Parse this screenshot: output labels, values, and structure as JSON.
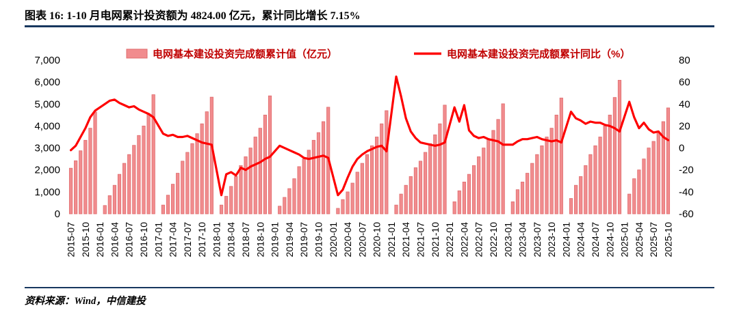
{
  "header": {
    "title": "图表 16: 1-10 月电网累计投资额为 4824.00 亿元，累计同比增长 7.15%"
  },
  "footer": {
    "source": "资料来源：Wind，中信建投"
  },
  "legend": {
    "bars": "电网基本建设投资完成额累计值（亿元）",
    "line": "电网基本建设投资完成额累计同比（%）"
  },
  "colors": {
    "bar_fill": "#F18C8E",
    "bar_edge": "#E06C6E",
    "line_color": "#FE0000",
    "legend_text": "#C00000",
    "rule_color": "#17375E",
    "axis_text": "#000000"
  },
  "chart_data": {
    "type": "bar+line",
    "title": "1-10 月电网累计投资额为 4824.00 亿元，累计同比增长 7.15%",
    "left_axis": {
      "min": 0,
      "max": 7000,
      "step": 1000,
      "label": "电网基本建设投资完成额累计值（亿元）"
    },
    "right_axis": {
      "min": -60,
      "max": 80,
      "step": 20,
      "label": "电网基本建设投资完成额累计同比（%）"
    },
    "x_tick_months": [
      "01",
      "04",
      "07",
      "10"
    ],
    "grid": false,
    "legend_position": "top",
    "months": [
      "2015-07",
      "2015-08",
      "2015-09",
      "2015-10",
      "2015-11",
      "2015-12",
      "2016-01",
      "2016-02",
      "2016-03",
      "2016-04",
      "2016-05",
      "2016-06",
      "2016-07",
      "2016-08",
      "2016-09",
      "2016-10",
      "2016-11",
      "2016-12",
      "2017-01",
      "2017-02",
      "2017-03",
      "2017-04",
      "2017-05",
      "2017-06",
      "2017-07",
      "2017-08",
      "2017-09",
      "2017-10",
      "2017-11",
      "2017-12",
      "2018-01",
      "2018-02",
      "2018-03",
      "2018-04",
      "2018-05",
      "2018-06",
      "2018-07",
      "2018-08",
      "2018-09",
      "2018-10",
      "2018-11",
      "2018-12",
      "2019-01",
      "2019-02",
      "2019-03",
      "2019-04",
      "2019-05",
      "2019-06",
      "2019-07",
      "2019-08",
      "2019-09",
      "2019-10",
      "2019-11",
      "2019-12",
      "2020-01",
      "2020-02",
      "2020-03",
      "2020-04",
      "2020-05",
      "2020-06",
      "2020-07",
      "2020-08",
      "2020-09",
      "2020-10",
      "2020-11",
      "2020-12",
      "2021-01",
      "2021-02",
      "2021-03",
      "2021-04",
      "2021-05",
      "2021-06",
      "2021-07",
      "2021-08",
      "2021-09",
      "2021-10",
      "2021-11",
      "2021-12",
      "2022-01",
      "2022-02",
      "2022-03",
      "2022-04",
      "2022-05",
      "2022-06",
      "2022-07",
      "2022-08",
      "2022-09",
      "2022-10",
      "2022-11",
      "2022-12",
      "2023-01",
      "2023-02",
      "2023-03",
      "2023-04",
      "2023-05",
      "2023-06",
      "2023-07",
      "2023-08",
      "2023-09",
      "2023-10",
      "2023-11",
      "2023-12",
      "2024-01",
      "2024-02",
      "2024-03",
      "2024-04",
      "2024-05",
      "2024-06",
      "2024-07",
      "2024-08",
      "2024-09",
      "2024-10",
      "2024-11",
      "2024-12",
      "2025-01",
      "2025-02",
      "2025-03",
      "2025-04",
      "2025-05",
      "2025-06",
      "2025-07",
      "2025-08",
      "2025-09",
      "2025-10"
    ],
    "series": [
      {
        "name": "电网基本建设投资完成额累计值（亿元）",
        "type": "bar",
        "axis": "left",
        "values": [
          2078,
          2418,
          2872,
          3350,
          3900,
          4640,
          null,
          380,
          830,
          1300,
          1800,
          2300,
          2700,
          3120,
          3570,
          4000,
          4570,
          5426,
          null,
          400,
          850,
          1350,
          1850,
          2400,
          2800,
          3200,
          3650,
          4100,
          4650,
          5315,
          null,
          400,
          800,
          1250,
          1700,
          2200,
          2600,
          3000,
          3500,
          3900,
          4500,
          5373,
          null,
          350,
          750,
          1150,
          1600,
          2150,
          2500,
          2900,
          3350,
          3700,
          4200,
          4856,
          null,
          250,
          650,
          1000,
          1400,
          1900,
          2300,
          2700,
          3100,
          3500,
          4100,
          4699,
          null,
          400,
          900,
          1300,
          1700,
          2100,
          2400,
          2800,
          3200,
          3600,
          4100,
          4951,
          null,
          550,
          1050,
          1450,
          1800,
          2200,
          2600,
          3000,
          3400,
          3800,
          4300,
          5012,
          null,
          550,
          1100,
          1450,
          1850,
          2300,
          2700,
          3100,
          3500,
          3900,
          4500,
          5275,
          null,
          700,
          1300,
          1700,
          2200,
          2700,
          3100,
          3500,
          4000,
          4500,
          5300,
          6083,
          null,
          900,
          1600,
          2000,
          2500,
          3000,
          3300,
          3700,
          4200,
          4824
        ]
      },
      {
        "name": "电网基本建设投资完成额累计同比（%）",
        "type": "line",
        "axis": "right",
        "values": [
          -2,
          2,
          10,
          18,
          28,
          34,
          null,
          40,
          43,
          44,
          41,
          39,
          37,
          38,
          35,
          33,
          31,
          28,
          null,
          13,
          11,
          12,
          10,
          10,
          11,
          9,
          7,
          5,
          4,
          3,
          null,
          -43,
          -24,
          -22,
          -25,
          -18,
          -20,
          -17,
          -15,
          -13,
          -10,
          -8,
          null,
          2,
          0,
          -2,
          -4,
          -6,
          -9,
          -10,
          -9,
          -8,
          -7,
          -9,
          null,
          -43,
          -38,
          -27,
          -17,
          -10,
          -6,
          -3,
          -1,
          1,
          2,
          -3,
          null,
          65,
          47,
          27,
          15,
          9,
          5,
          4,
          3,
          2,
          3,
          5,
          null,
          37,
          24,
          39,
          16,
          11,
          9,
          10,
          8,
          7,
          6,
          3,
          null,
          3,
          6,
          8,
          8,
          9,
          10,
          8,
          7,
          6,
          7,
          5,
          null,
          33,
          27,
          25,
          22,
          24,
          23,
          23,
          21,
          20,
          18,
          15,
          null,
          42,
          28,
          18,
          23,
          17,
          14,
          15,
          10,
          7.15
        ]
      }
    ]
  }
}
